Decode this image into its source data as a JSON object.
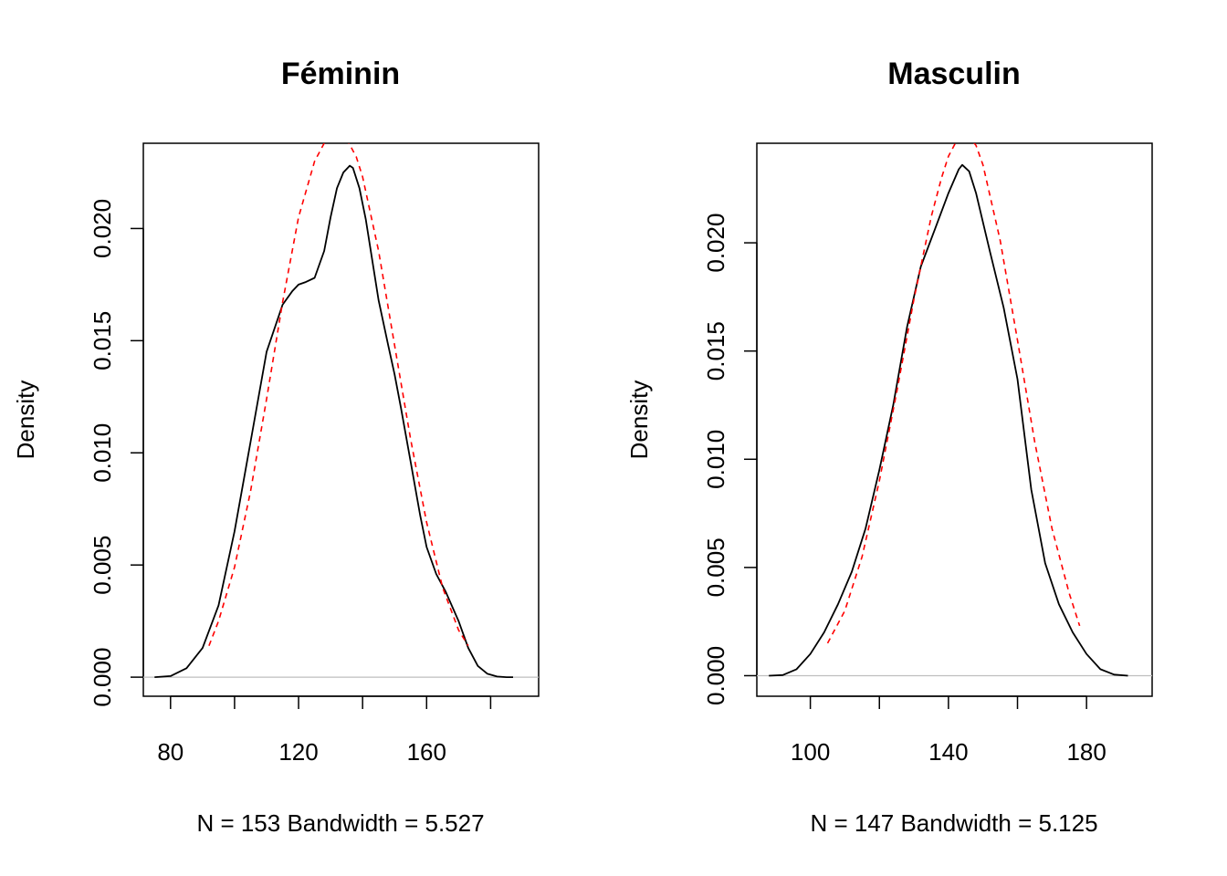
{
  "chart_data": [
    {
      "type": "line",
      "title": "Féminin",
      "xlabel": "N = 153   Bandwidth = 5.527",
      "ylabel": "Density",
      "xlim": [
        71.5,
        195
      ],
      "ylim": [
        -0.00085,
        0.0238
      ],
      "xticks": [
        "80",
        "120",
        "160"
      ],
      "xtick_values": [
        80,
        100,
        120,
        140,
        160,
        180
      ],
      "yticks": [
        "0.000",
        "0.005",
        "0.010",
        "0.015",
        "0.020"
      ],
      "ytick_values": [
        0,
        0.005,
        0.01,
        0.015,
        0.02
      ],
      "baseline": 0,
      "series": [
        {
          "style": "solid",
          "color": "#000000",
          "x": [
            75,
            80,
            85,
            90,
            95,
            100,
            105,
            110,
            115,
            118,
            120,
            122,
            125,
            128,
            130,
            132,
            134,
            136,
            137,
            139,
            141,
            143,
            145,
            148,
            150,
            152,
            155,
            158,
            160,
            163,
            166,
            170,
            173,
            176,
            179,
            182,
            185,
            187
          ],
          "y": [
            0.0,
            5e-05,
            0.0004,
            0.0013,
            0.0032,
            0.0065,
            0.0105,
            0.0145,
            0.0166,
            0.0172,
            0.0175,
            0.0176,
            0.0178,
            0.019,
            0.0205,
            0.0218,
            0.0225,
            0.0228,
            0.0227,
            0.0218,
            0.0204,
            0.0186,
            0.0168,
            0.0148,
            0.0135,
            0.012,
            0.0096,
            0.0072,
            0.0058,
            0.0046,
            0.0038,
            0.0025,
            0.0013,
            0.0005,
            0.00015,
            3e-05,
            0.0,
            0.0
          ]
        },
        {
          "style": "dashed",
          "color": "#ff0000",
          "x": [
            92,
            95,
            100,
            105,
            110,
            115,
            120,
            125,
            128,
            131,
            133,
            135,
            138,
            140,
            145,
            150,
            155,
            160,
            165,
            170,
            173
          ],
          "y": [
            0.0014,
            0.0025,
            0.0049,
            0.0083,
            0.0124,
            0.0167,
            0.0205,
            0.023,
            0.0238,
            0.0241,
            0.0241,
            0.024,
            0.0232,
            0.0223,
            0.019,
            0.0148,
            0.0106,
            0.0069,
            0.004,
            0.0021,
            0.0014
          ]
        }
      ]
    },
    {
      "type": "line",
      "title": "Masculin",
      "xlabel": "N = 147   Bandwidth = 5.125",
      "ylabel": "Density",
      "xlim": [
        84.5,
        199
      ],
      "ylim": [
        -0.00095,
        0.0246
      ],
      "xticks": [
        "100",
        "140",
        "180"
      ],
      "xtick_values": [
        100,
        120,
        140,
        160,
        180
      ],
      "yticks": [
        "0.000",
        "0.005",
        "0.010",
        "0.015",
        "0.020"
      ],
      "ytick_values": [
        0,
        0.005,
        0.01,
        0.015,
        0.02
      ],
      "baseline": 0,
      "series": [
        {
          "style": "solid",
          "color": "#000000",
          "x": [
            88,
            92,
            96,
            100,
            104,
            108,
            112,
            116,
            120,
            124,
            128,
            132,
            136,
            140,
            143,
            144,
            146,
            148,
            152,
            156,
            160,
            164,
            168,
            172,
            176,
            180,
            184,
            188,
            192
          ],
          "y": [
            0.0,
            3e-05,
            0.0003,
            0.001,
            0.002,
            0.0033,
            0.0048,
            0.0068,
            0.0095,
            0.0125,
            0.0161,
            0.0189,
            0.0206,
            0.0223,
            0.0234,
            0.0236,
            0.0233,
            0.0223,
            0.0196,
            0.017,
            0.0137,
            0.0086,
            0.0052,
            0.0033,
            0.002,
            0.001,
            0.0003,
            5e-05,
            0.0
          ]
        },
        {
          "style": "dashed",
          "color": "#ff0000",
          "x": [
            105,
            110,
            115,
            120,
            125,
            130,
            135,
            138,
            140,
            142,
            144,
            146,
            148,
            150,
            155,
            160,
            165,
            170,
            175,
            178
          ],
          "y": [
            0.0015,
            0.003,
            0.0055,
            0.009,
            0.0131,
            0.0174,
            0.0212,
            0.023,
            0.024,
            0.0246,
            0.0249,
            0.0249,
            0.0245,
            0.0236,
            0.0201,
            0.0155,
            0.0108,
            0.0068,
            0.0038,
            0.0023
          ]
        }
      ]
    }
  ]
}
